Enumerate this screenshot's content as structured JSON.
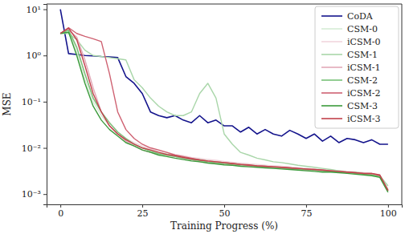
{
  "chart_data": {
    "type": "line",
    "x_label": "Training Progress (%)",
    "y_label": "MSE",
    "log": "y",
    "legend": "upper right",
    "xlim": [
      -4.2,
      104.2
    ],
    "xticks": [
      0,
      25,
      50,
      75,
      100
    ],
    "ylim": [
      0.0006,
      13
    ],
    "yticks": [
      {
        "value": 0.001,
        "label": "10⁻³"
      },
      {
        "value": 0.01,
        "label": "10⁻²"
      },
      {
        "value": 0.1,
        "label": "10⁻¹"
      },
      {
        "value": 1,
        "label": "10⁰"
      },
      {
        "value": 10,
        "label": "10¹"
      }
    ],
    "x": [
      0,
      2.5,
      5,
      7.5,
      10,
      12.5,
      15,
      17.5,
      20,
      22.5,
      25,
      27.5,
      30,
      32.5,
      35,
      37.5,
      40,
      42.5,
      45,
      47.5,
      50,
      52.5,
      55,
      57.5,
      60,
      62.5,
      65,
      67.5,
      70,
      72.5,
      75,
      77.5,
      80,
      82.5,
      85,
      87.5,
      90,
      92.5,
      95,
      97.5,
      100
    ],
    "series": [
      {
        "name": "CoDA",
        "color": "#14148c",
        "values": [
          10,
          1.1,
          1.05,
          1.0,
          0.98,
          0.95,
          0.93,
          0.9,
          0.35,
          0.25,
          0.15,
          0.06,
          0.05,
          0.045,
          0.05,
          0.04,
          0.035,
          0.05,
          0.035,
          0.04,
          0.03,
          0.03,
          0.022,
          0.028,
          0.02,
          0.025,
          0.02,
          0.018,
          0.024,
          0.02,
          0.016,
          0.02,
          0.014,
          0.018,
          0.013,
          0.016,
          0.015,
          0.013,
          0.015,
          0.012,
          0.012
        ]
      },
      {
        "name": "CSM-0",
        "color": "#d6ecd6",
        "values": [
          3,
          3.5,
          1.2,
          0.3,
          0.1,
          0.05,
          0.03,
          0.02,
          0.015,
          0.012,
          0.01,
          0.009,
          0.008,
          0.0075,
          0.007,
          0.0065,
          0.006,
          0.0058,
          0.0055,
          0.0052,
          0.005,
          0.0048,
          0.0046,
          0.0045,
          0.0043,
          0.0042,
          0.004,
          0.004,
          0.0038,
          0.0037,
          0.0036,
          0.0035,
          0.0034,
          0.0033,
          0.0032,
          0.0031,
          0.003,
          0.0029,
          0.0028,
          0.0025,
          0.0013
        ]
      },
      {
        "name": "iCSM-0",
        "color": "#f2d6de",
        "values": [
          3,
          3.8,
          1.5,
          0.4,
          0.12,
          0.06,
          0.035,
          0.022,
          0.016,
          0.013,
          0.011,
          0.0095,
          0.0085,
          0.008,
          0.0072,
          0.0068,
          0.0062,
          0.006,
          0.0056,
          0.0054,
          0.0051,
          0.0049,
          0.0047,
          0.0045,
          0.0044,
          0.0042,
          0.0041,
          0.004,
          0.0039,
          0.0037,
          0.0036,
          0.0035,
          0.0034,
          0.0033,
          0.0032,
          0.0031,
          0.003,
          0.0029,
          0.0028,
          0.0026,
          0.0012
        ]
      },
      {
        "name": "CSM-1",
        "color": "#a9d6a9",
        "values": [
          3,
          3,
          2.2,
          1.3,
          1.0,
          0.95,
          0.9,
          0.85,
          0.8,
          0.3,
          0.2,
          0.12,
          0.08,
          0.06,
          0.05,
          0.05,
          0.06,
          0.15,
          0.25,
          0.12,
          0.02,
          0.012,
          0.008,
          0.007,
          0.006,
          0.0055,
          0.005,
          0.0048,
          0.0045,
          0.0042,
          0.004,
          0.0038,
          0.0036,
          0.0034,
          0.0032,
          0.003,
          0.003,
          0.0028,
          0.0027,
          0.0025,
          0.0015
        ]
      },
      {
        "name": "iCSM-1",
        "color": "#e3a9b8",
        "values": [
          3,
          3.6,
          2.5,
          0.8,
          0.2,
          0.06,
          0.03,
          0.02,
          0.014,
          0.011,
          0.009,
          0.008,
          0.0075,
          0.007,
          0.0065,
          0.006,
          0.0055,
          0.005,
          0.0048,
          0.0046,
          0.0044,
          0.0043,
          0.0042,
          0.004,
          0.0039,
          0.0038,
          0.0037,
          0.0036,
          0.0035,
          0.0034,
          0.0033,
          0.0033,
          0.0032,
          0.0031,
          0.003,
          0.003,
          0.0029,
          0.0028,
          0.0027,
          0.0024,
          0.0012
        ]
      },
      {
        "name": "CSM-2",
        "color": "#79c279",
        "values": [
          3,
          3.5,
          1.5,
          0.4,
          0.12,
          0.06,
          0.035,
          0.022,
          0.016,
          0.012,
          0.01,
          0.0085,
          0.0075,
          0.007,
          0.0065,
          0.006,
          0.0056,
          0.0053,
          0.005,
          0.0048,
          0.0046,
          0.0045,
          0.0043,
          0.0042,
          0.004,
          0.0039,
          0.0038,
          0.0037,
          0.0036,
          0.0035,
          0.0034,
          0.0033,
          0.0032,
          0.0031,
          0.003,
          0.0029,
          0.0028,
          0.0027,
          0.0026,
          0.0024,
          0.0012
        ]
      },
      {
        "name": "iCSM-2",
        "color": "#cf6272",
        "values": [
          3,
          4,
          3,
          2.6,
          2.3,
          2.0,
          0.4,
          0.06,
          0.025,
          0.016,
          0.012,
          0.01,
          0.009,
          0.008,
          0.007,
          0.0065,
          0.006,
          0.0055,
          0.0052,
          0.005,
          0.0048,
          0.0046,
          0.0044,
          0.0042,
          0.0041,
          0.004,
          0.0039,
          0.0038,
          0.0037,
          0.0036,
          0.0035,
          0.0034,
          0.0033,
          0.0032,
          0.0031,
          0.003,
          0.0029,
          0.0028,
          0.0028,
          0.0025,
          0.0012
        ]
      },
      {
        "name": "CSM-3",
        "color": "#3b9b3b",
        "values": [
          3,
          3.2,
          1.0,
          0.25,
          0.08,
          0.04,
          0.025,
          0.018,
          0.013,
          0.011,
          0.009,
          0.008,
          0.007,
          0.0065,
          0.006,
          0.0056,
          0.0052,
          0.005,
          0.0047,
          0.0045,
          0.0043,
          0.0042,
          0.004,
          0.0039,
          0.0038,
          0.0037,
          0.0036,
          0.0035,
          0.0034,
          0.0033,
          0.0032,
          0.0031,
          0.003,
          0.003,
          0.0029,
          0.0028,
          0.0027,
          0.0026,
          0.0025,
          0.0023,
          0.0011
        ]
      },
      {
        "name": "iCSM-3",
        "color": "#c2424c",
        "values": [
          3,
          3.9,
          2.2,
          0.6,
          0.15,
          0.06,
          0.03,
          0.02,
          0.015,
          0.012,
          0.01,
          0.009,
          0.008,
          0.0072,
          0.0068,
          0.0062,
          0.0058,
          0.0055,
          0.0052,
          0.005,
          0.0048,
          0.0046,
          0.0044,
          0.0043,
          0.0041,
          0.004,
          0.0039,
          0.0038,
          0.0037,
          0.0036,
          0.0035,
          0.0034,
          0.0033,
          0.0032,
          0.0031,
          0.003,
          0.0029,
          0.0028,
          0.0028,
          0.0026,
          0.0012
        ]
      }
    ]
  }
}
